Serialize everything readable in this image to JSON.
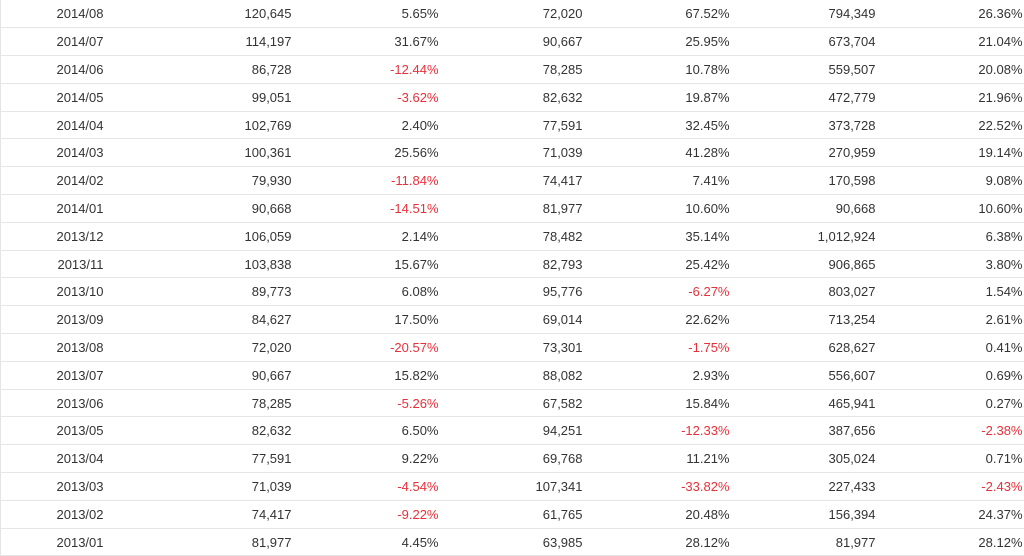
{
  "colors": {
    "text": "#333333",
    "negative": "#e8303a",
    "row_border": "#e6e6e6"
  },
  "table": {
    "rows": [
      [
        "2014/08",
        "120,645",
        "5.65%",
        "72,020",
        "67.52%",
        "794,349",
        "26.36%"
      ],
      [
        "2014/07",
        "114,197",
        "31.67%",
        "90,667",
        "25.95%",
        "673,704",
        "21.04%"
      ],
      [
        "2014/06",
        "86,728",
        "-12.44%",
        "78,285",
        "10.78%",
        "559,507",
        "20.08%"
      ],
      [
        "2014/05",
        "99,051",
        "-3.62%",
        "82,632",
        "19.87%",
        "472,779",
        "21.96%"
      ],
      [
        "2014/04",
        "102,769",
        "2.40%",
        "77,591",
        "32.45%",
        "373,728",
        "22.52%"
      ],
      [
        "2014/03",
        "100,361",
        "25.56%",
        "71,039",
        "41.28%",
        "270,959",
        "19.14%"
      ],
      [
        "2014/02",
        "79,930",
        "-11.84%",
        "74,417",
        "7.41%",
        "170,598",
        "9.08%"
      ],
      [
        "2014/01",
        "90,668",
        "-14.51%",
        "81,977",
        "10.60%",
        "90,668",
        "10.60%"
      ],
      [
        "2013/12",
        "106,059",
        "2.14%",
        "78,482",
        "35.14%",
        "1,012,924",
        "6.38%"
      ],
      [
        "2013/11",
        "103,838",
        "15.67%",
        "82,793",
        "25.42%",
        "906,865",
        "3.80%"
      ],
      [
        "2013/10",
        "89,773",
        "6.08%",
        "95,776",
        "-6.27%",
        "803,027",
        "1.54%"
      ],
      [
        "2013/09",
        "84,627",
        "17.50%",
        "69,014",
        "22.62%",
        "713,254",
        "2.61%"
      ],
      [
        "2013/08",
        "72,020",
        "-20.57%",
        "73,301",
        "-1.75%",
        "628,627",
        "0.41%"
      ],
      [
        "2013/07",
        "90,667",
        "15.82%",
        "88,082",
        "2.93%",
        "556,607",
        "0.69%"
      ],
      [
        "2013/06",
        "78,285",
        "-5.26%",
        "67,582",
        "15.84%",
        "465,941",
        "0.27%"
      ],
      [
        "2013/05",
        "82,632",
        "6.50%",
        "94,251",
        "-12.33%",
        "387,656",
        "-2.38%"
      ],
      [
        "2013/04",
        "77,591",
        "9.22%",
        "69,768",
        "11.21%",
        "305,024",
        "0.71%"
      ],
      [
        "2013/03",
        "71,039",
        "-4.54%",
        "107,341",
        "-33.82%",
        "227,433",
        "-2.43%"
      ],
      [
        "2013/02",
        "74,417",
        "-9.22%",
        "61,765",
        "20.48%",
        "156,394",
        "24.37%"
      ],
      [
        "2013/01",
        "81,977",
        "4.45%",
        "63,985",
        "28.12%",
        "81,977",
        "28.12%"
      ]
    ]
  }
}
